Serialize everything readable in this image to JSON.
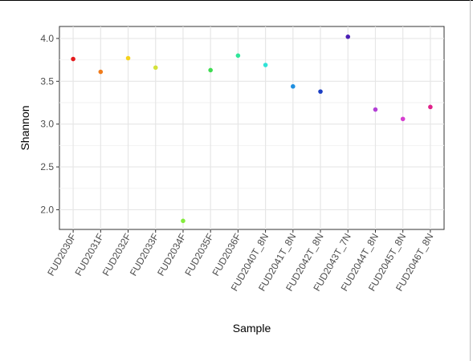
{
  "chart_data": {
    "type": "scatter",
    "title": "",
    "xlabel": "Sample",
    "ylabel": "Shannon",
    "ylim": [
      1.77,
      4.14
    ],
    "yticks": [
      2.0,
      2.5,
      3.0,
      3.5,
      4.0
    ],
    "ytick_labels": [
      "2.0",
      "2.5",
      "3.0",
      "3.5",
      "4.0"
    ],
    "grid": true,
    "legend": "none",
    "points": [
      {
        "x": "FUD2030F",
        "y": 3.76,
        "color": "#e41a1c"
      },
      {
        "x": "FUD2031F",
        "y": 3.61,
        "color": "#f07c1c"
      },
      {
        "x": "FUD2032F",
        "y": 3.77,
        "color": "#f5d21d"
      },
      {
        "x": "FUD2033F",
        "y": 3.66,
        "color": "#d4e23a"
      },
      {
        "x": "FUD2034F",
        "y": 1.87,
        "color": "#84ec3d"
      },
      {
        "x": "FUD2035F",
        "y": 3.63,
        "color": "#3fdc52"
      },
      {
        "x": "FUD2036F",
        "y": 3.8,
        "color": "#2fe69a"
      },
      {
        "x": "FUD2040T_8N",
        "y": 3.69,
        "color": "#31e3d7"
      },
      {
        "x": "FUD2041T_8N",
        "y": 3.44,
        "color": "#1f8fe0"
      },
      {
        "x": "FUD2042T_8N",
        "y": 3.38,
        "color": "#1c3fc4"
      },
      {
        "x": "FUD2043T_7N",
        "y": 4.02,
        "color": "#4b1fb5"
      },
      {
        "x": "FUD2044T_8N",
        "y": 3.17,
        "color": "#b340d6"
      },
      {
        "x": "FUD2045T_8N",
        "y": 3.06,
        "color": "#d63fd0"
      },
      {
        "x": "FUD2046T_8N",
        "y": 3.2,
        "color": "#e0218a"
      }
    ]
  }
}
